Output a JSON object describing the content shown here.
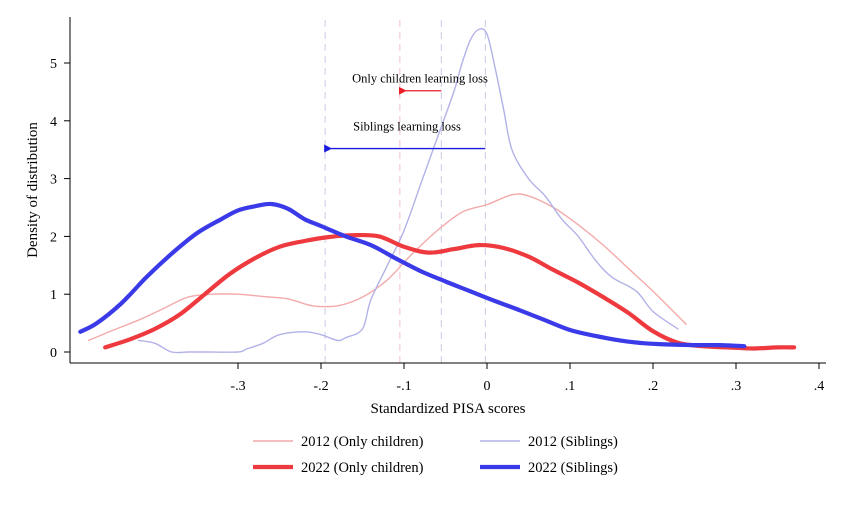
{
  "chart_data": {
    "type": "line",
    "xlabel": "Standardized PISA scores",
    "ylabel": "Density of distribution",
    "xlim": [
      -0.5,
      0.41
    ],
    "ylim": [
      -0.2,
      5.8
    ],
    "x_ticks": [
      -0.3,
      -0.2,
      -0.1,
      0,
      0.1,
      0.2,
      0.3,
      0.4
    ],
    "x_tick_labels": [
      "-.3",
      "-.2",
      "-.1",
      "0",
      ".1",
      ".2",
      ".3",
      ".4"
    ],
    "y_ticks": [
      0,
      1,
      2,
      3,
      4,
      5
    ],
    "y_tick_labels": [
      "0",
      "1",
      "2",
      "3",
      "4",
      "5"
    ],
    "grid": false,
    "legend_position": "bottom",
    "reference_lines": [
      {
        "x": -0.195,
        "color": "#cfcfe6"
      },
      {
        "x": -0.105,
        "color": "#f2c7cf"
      },
      {
        "x": -0.055,
        "color": "#cfcfe6"
      },
      {
        "x": -0.002,
        "color": "#cfcfe6"
      }
    ],
    "annotations": [
      {
        "text": "Only children learning loss",
        "arrow_from_x": -0.055,
        "arrow_to_x": -0.105,
        "arrow_y": 4.52,
        "text_y": 4.73,
        "color": "#ee1c25"
      },
      {
        "text": "Siblings learning loss",
        "arrow_from_x": -0.002,
        "arrow_to_x": -0.195,
        "arrow_y": 3.52,
        "text_y": 3.9,
        "color": "#1a1adf"
      }
    ],
    "series": [
      {
        "name": "2012 (Only children)",
        "color": "#f4aaaa",
        "width": 1.4,
        "x": [
          -0.48,
          -0.45,
          -0.42,
          -0.39,
          -0.36,
          -0.33,
          -0.3,
          -0.27,
          -0.24,
          -0.21,
          -0.18,
          -0.15,
          -0.12,
          -0.09,
          -0.06,
          -0.03,
          0.0,
          0.03,
          0.05,
          0.08,
          0.11,
          0.14,
          0.17,
          0.2,
          0.24
        ],
        "values": [
          0.2,
          0.38,
          0.55,
          0.75,
          0.95,
          1.0,
          1.0,
          0.96,
          0.92,
          0.8,
          0.8,
          0.95,
          1.25,
          1.7,
          2.1,
          2.42,
          2.55,
          2.72,
          2.7,
          2.5,
          2.2,
          1.85,
          1.45,
          1.05,
          0.48
        ]
      },
      {
        "name": "2012 (Siblings)",
        "color": "#b2b2e8",
        "width": 1.4,
        "x": [
          -0.42,
          -0.4,
          -0.38,
          -0.36,
          -0.34,
          -0.3,
          -0.29,
          -0.27,
          -0.25,
          -0.22,
          -0.2,
          -0.18,
          -0.17,
          -0.15,
          -0.14,
          -0.12,
          -0.1,
          -0.08,
          -0.06,
          -0.04,
          -0.03,
          -0.02,
          -0.01,
          0.0,
          0.01,
          0.02,
          0.03,
          0.05,
          0.07,
          0.09,
          0.11,
          0.13,
          0.15,
          0.18,
          0.2,
          0.23
        ],
        "values": [
          0.2,
          0.15,
          0.0,
          0.0,
          0.0,
          0.0,
          0.05,
          0.15,
          0.3,
          0.35,
          0.3,
          0.2,
          0.25,
          0.4,
          0.9,
          1.5,
          2.1,
          2.9,
          3.7,
          4.5,
          5.0,
          5.4,
          5.58,
          5.5,
          4.9,
          4.2,
          3.5,
          3.0,
          2.7,
          2.3,
          2.0,
          1.6,
          1.3,
          1.05,
          0.7,
          0.4
        ]
      },
      {
        "name": "2022 (Only children)",
        "color": "#ee3a3e",
        "width": 4.2,
        "x": [
          -0.46,
          -0.43,
          -0.4,
          -0.37,
          -0.34,
          -0.31,
          -0.28,
          -0.25,
          -0.22,
          -0.19,
          -0.16,
          -0.13,
          -0.1,
          -0.07,
          -0.04,
          -0.01,
          0.02,
          0.05,
          0.08,
          0.11,
          0.14,
          0.17,
          0.2,
          0.23,
          0.26,
          0.29,
          0.32,
          0.35,
          0.37
        ],
        "values": [
          0.08,
          0.22,
          0.4,
          0.65,
          1.0,
          1.35,
          1.62,
          1.82,
          1.92,
          1.99,
          2.02,
          2.0,
          1.82,
          1.72,
          1.78,
          1.85,
          1.8,
          1.65,
          1.42,
          1.2,
          0.95,
          0.68,
          0.36,
          0.16,
          0.1,
          0.08,
          0.06,
          0.08,
          0.08
        ]
      },
      {
        "name": "2022 (Siblings)",
        "color": "#3a3ae8",
        "width": 4.2,
        "x": [
          -0.49,
          -0.47,
          -0.44,
          -0.41,
          -0.38,
          -0.35,
          -0.32,
          -0.3,
          -0.28,
          -0.26,
          -0.24,
          -0.22,
          -0.2,
          -0.17,
          -0.14,
          -0.11,
          -0.08,
          -0.05,
          -0.02,
          0.01,
          0.04,
          0.07,
          0.1,
          0.13,
          0.16,
          0.19,
          0.22,
          0.25,
          0.28,
          0.31
        ],
        "values": [
          0.35,
          0.5,
          0.85,
          1.3,
          1.7,
          2.05,
          2.3,
          2.45,
          2.52,
          2.56,
          2.48,
          2.3,
          2.18,
          2.0,
          1.85,
          1.62,
          1.4,
          1.22,
          1.05,
          0.88,
          0.72,
          0.55,
          0.38,
          0.28,
          0.2,
          0.15,
          0.13,
          0.12,
          0.12,
          0.1
        ]
      }
    ]
  }
}
